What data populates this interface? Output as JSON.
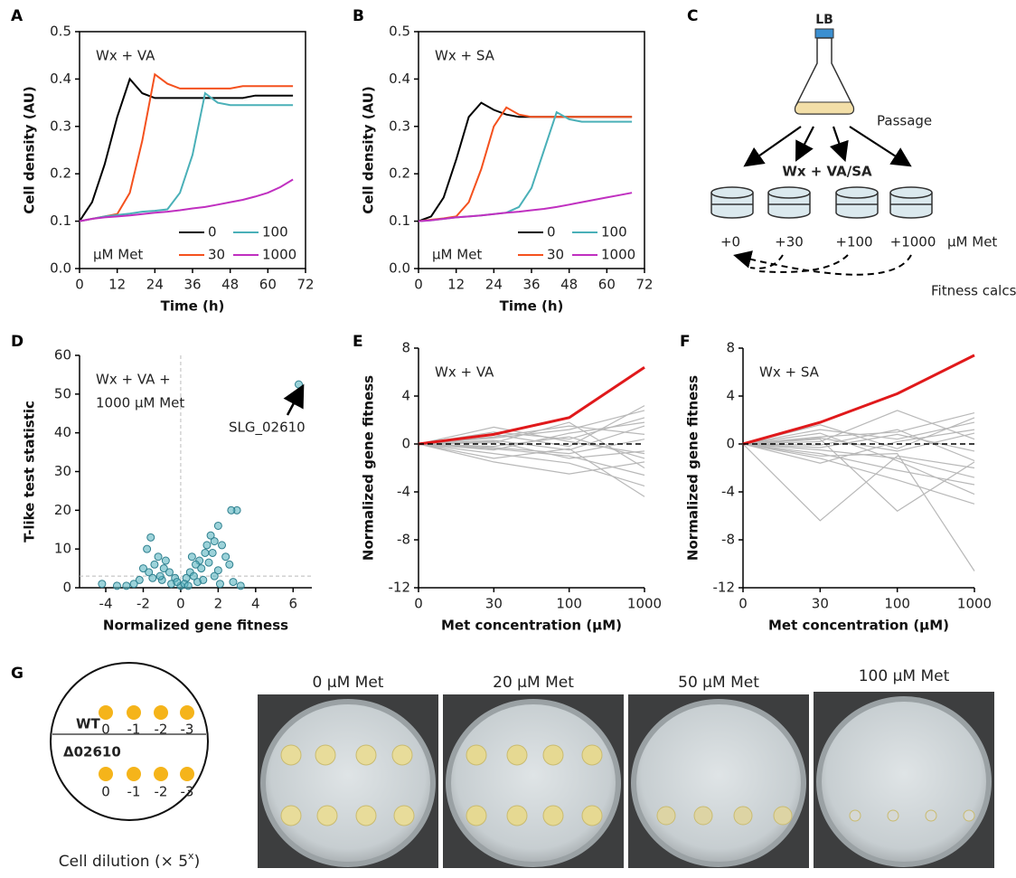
{
  "panel_labels": [
    "A",
    "B",
    "C",
    "D",
    "E",
    "F",
    "G"
  ],
  "chart_data": [
    {
      "type": "line",
      "box": true,
      "annotation": [
        "Wx + VA"
      ],
      "xlabel": "Time (h)",
      "ylabel": "Cell density (AU)",
      "x": [
        0,
        4,
        8,
        12,
        16,
        20,
        24,
        28,
        32,
        36,
        40,
        44,
        48,
        52,
        56,
        60,
        64,
        68
      ],
      "xlim": [
        0,
        72
      ],
      "xticks": [
        0,
        12,
        24,
        36,
        48,
        60,
        72
      ],
      "ylim": [
        0,
        0.5
      ],
      "yticks": [
        {
          "value": 0,
          "label": "0.0"
        },
        0.1,
        0.2,
        0.3,
        0.4,
        0.5
      ],
      "legend_title": "μM Met",
      "series": [
        {
          "name": "0",
          "color": "#000000",
          "values": [
            0.1,
            0.14,
            0.22,
            0.32,
            0.4,
            0.37,
            0.36,
            0.36,
            0.36,
            0.36,
            0.36,
            0.36,
            0.36,
            0.36,
            0.365,
            0.365,
            0.365,
            0.365
          ]
        },
        {
          "name": "30",
          "color": "#f4511e",
          "values": [
            0.1,
            0.105,
            0.11,
            0.115,
            0.16,
            0.27,
            0.41,
            0.39,
            0.38,
            0.38,
            0.38,
            0.38,
            0.38,
            0.385,
            0.385,
            0.385,
            0.385,
            0.385
          ]
        },
        {
          "name": "100",
          "color": "#4ab0b8",
          "values": [
            0.1,
            0.105,
            0.11,
            0.113,
            0.116,
            0.12,
            0.122,
            0.125,
            0.16,
            0.24,
            0.37,
            0.35,
            0.345,
            0.345,
            0.345,
            0.345,
            0.345,
            0.345
          ]
        },
        {
          "name": "1000",
          "color": "#c030c0",
          "values": [
            0.1,
            0.105,
            0.108,
            0.11,
            0.112,
            0.115,
            0.118,
            0.12,
            0.123,
            0.127,
            0.13,
            0.135,
            0.14,
            0.145,
            0.152,
            0.16,
            0.172,
            0.188
          ]
        }
      ]
    },
    {
      "type": "line",
      "box": true,
      "annotation": [
        "Wx + SA"
      ],
      "xlabel": "Time (h)",
      "ylabel": "Cell density (AU)",
      "x": [
        0,
        4,
        8,
        12,
        16,
        20,
        24,
        28,
        32,
        36,
        40,
        44,
        48,
        52,
        56,
        60,
        64,
        68
      ],
      "xlim": [
        0,
        72
      ],
      "xticks": [
        0,
        12,
        24,
        36,
        48,
        60,
        72
      ],
      "ylim": [
        0,
        0.5
      ],
      "yticks": [
        {
          "value": 0,
          "label": "0.0"
        },
        0.1,
        0.2,
        0.3,
        0.4,
        0.5
      ],
      "legend_title": "μM Met",
      "series": [
        {
          "name": "0",
          "color": "#000000",
          "values": [
            0.1,
            0.11,
            0.15,
            0.23,
            0.32,
            0.35,
            0.335,
            0.325,
            0.32,
            0.32,
            0.32,
            0.32,
            0.32,
            0.32,
            0.32,
            0.32,
            0.32,
            0.32
          ]
        },
        {
          "name": "30",
          "color": "#f4511e",
          "values": [
            0.1,
            0.103,
            0.106,
            0.11,
            0.14,
            0.21,
            0.3,
            0.34,
            0.325,
            0.32,
            0.32,
            0.32,
            0.32,
            0.32,
            0.32,
            0.32,
            0.32,
            0.32
          ]
        },
        {
          "name": "100",
          "color": "#4ab0b8",
          "values": [
            0.1,
            0.102,
            0.105,
            0.108,
            0.11,
            0.112,
            0.115,
            0.118,
            0.13,
            0.17,
            0.25,
            0.33,
            0.315,
            0.31,
            0.31,
            0.31,
            0.31,
            0.31
          ]
        },
        {
          "name": "1000",
          "color": "#c030c0",
          "values": [
            0.1,
            0.102,
            0.105,
            0.108,
            0.11,
            0.112,
            0.115,
            0.118,
            0.12,
            0.123,
            0.126,
            0.13,
            0.135,
            0.14,
            0.145,
            0.15,
            0.155,
            0.16
          ]
        }
      ]
    },
    {
      "type": "scatter",
      "annotation": [
        "Wx + VA +",
        "1000 μM Met"
      ],
      "callout": "SLG_02610",
      "xlabel": "Normalized gene fitness",
      "ylabel": "T-like test statistic",
      "color": "#5ab4c0",
      "xlim": [
        -5.4,
        7
      ],
      "xticks": [
        -4,
        -2,
        0,
        2,
        4,
        6
      ],
      "ylim": [
        0,
        60
      ],
      "yticks": [
        0,
        10,
        20,
        30,
        40,
        50,
        60
      ],
      "hline": 3,
      "vline": 0,
      "x": [
        6.3,
        3.0,
        2.7,
        2.0,
        1.6,
        1.8,
        -1.6,
        -1.8,
        1.3,
        2.2,
        1.0,
        0.8,
        -1.2,
        -1.4,
        -0.9,
        -0.6,
        -0.3,
        0.3,
        0.5,
        0.7,
        1.1,
        1.5,
        2.4,
        2.6,
        -2.2,
        -2.5,
        -4.2,
        -3.4,
        -2.9,
        -1.0,
        -0.5,
        0,
        0.2,
        0.4,
        0.9,
        1.2,
        1.8,
        2.1,
        2.8,
        -1.7,
        -1.5,
        -2.0,
        1.4,
        -0.8,
        -0.2,
        3.2,
        2.0,
        -1.1,
        0.6,
        1.7
      ],
      "values": [
        52.5,
        20,
        20,
        16,
        13.5,
        12,
        13,
        10,
        9,
        11,
        7,
        6,
        8,
        6,
        5,
        4,
        2.5,
        2.5,
        4,
        3,
        5,
        6.5,
        8,
        6,
        2,
        1,
        1,
        0.5,
        0.5,
        2,
        1,
        0.5,
        1,
        0.5,
        1.5,
        2,
        3,
        1,
        1.5,
        4,
        2.5,
        5,
        11,
        7,
        1.5,
        0.5,
        4.5,
        3,
        8,
        9
      ]
    },
    {
      "type": "line",
      "annotation": [
        "Wx + VA"
      ],
      "xlabel": "Met concentration (μM)",
      "ylabel": "Normalized gene fitness",
      "categories": [
        "0",
        "30",
        "100",
        "1000"
      ],
      "ylim": [
        -12,
        8
      ],
      "yticks": [
        -12,
        -8,
        -4,
        0,
        4,
        8
      ],
      "hline": 0,
      "series": [
        {
          "color": "#b8b8b8",
          "values": [
            0,
            0.5,
            1.2,
            2.8
          ]
        },
        {
          "color": "#b8b8b8",
          "values": [
            0,
            -0.4,
            -1.0,
            -2.6
          ]
        },
        {
          "color": "#b8b8b8",
          "values": [
            0,
            0.3,
            -0.5,
            1.5
          ]
        },
        {
          "color": "#b8b8b8",
          "values": [
            0,
            -0.8,
            -1.6,
            -3.5
          ]
        },
        {
          "color": "#b8b8b8",
          "values": [
            0,
            1.0,
            0.4,
            2.2
          ]
        },
        {
          "color": "#b8b8b8",
          "values": [
            0,
            -0.2,
            0.6,
            -1.2
          ]
        },
        {
          "color": "#b8b8b8",
          "values": [
            0,
            0.6,
            1.5,
            0.8
          ]
        },
        {
          "color": "#b8b8b8",
          "values": [
            0,
            -1.2,
            -0.4,
            -4.4
          ]
        },
        {
          "color": "#b8b8b8",
          "values": [
            0,
            0.2,
            -1.2,
            -0.6
          ]
        },
        {
          "color": "#b8b8b8",
          "values": [
            0,
            -0.5,
            0.9,
            1.8
          ]
        },
        {
          "color": "#b8b8b8",
          "values": [
            0,
            1.4,
            0.2,
            -0.8
          ]
        },
        {
          "color": "#b8b8b8",
          "values": [
            0,
            -1.5,
            -2.5,
            -1.5
          ]
        },
        {
          "color": "#b8b8b8",
          "values": [
            0,
            0.8,
            -0.2,
            3.2
          ]
        },
        {
          "color": "#b8b8b8",
          "values": [
            0,
            -0.3,
            -0.8,
            0.4
          ]
        },
        {
          "color": "#b8b8b8",
          "values": [
            0,
            0.1,
            1.8,
            -2.0
          ]
        },
        {
          "color": "#e0191b",
          "values": [
            0,
            0.8,
            2.2,
            6.4
          ]
        }
      ]
    },
    {
      "type": "line",
      "annotation": [
        "Wx + SA"
      ],
      "xlabel": "Met concentration (μM)",
      "ylabel": "Normalized gene fitness",
      "categories": [
        "0",
        "30",
        "100",
        "1000"
      ],
      "ylim": [
        -12,
        8
      ],
      "yticks": [
        -12,
        -8,
        -4,
        0,
        4,
        8
      ],
      "hline": 0,
      "series": [
        {
          "color": "#b8b8b8",
          "values": [
            0,
            0.6,
            1.0,
            2.6
          ]
        },
        {
          "color": "#b8b8b8",
          "values": [
            0,
            -0.5,
            -1.2,
            -2.8
          ]
        },
        {
          "color": "#b8b8b8",
          "values": [
            0,
            -6.4,
            -1.0,
            -2.0
          ]
        },
        {
          "color": "#b8b8b8",
          "values": [
            0,
            0.4,
            -5.6,
            -1.5
          ]
        },
        {
          "color": "#b8b8b8",
          "values": [
            0,
            -1.0,
            -0.8,
            -10.6
          ]
        },
        {
          "color": "#b8b8b8",
          "values": [
            0,
            1.2,
            0.4,
            1.8
          ]
        },
        {
          "color": "#b8b8b8",
          "values": [
            0,
            -0.3,
            0.8,
            -0.6
          ]
        },
        {
          "color": "#b8b8b8",
          "values": [
            0,
            0.9,
            -1.4,
            -4.2
          ]
        },
        {
          "color": "#b8b8b8",
          "values": [
            0,
            -1.6,
            0.2,
            1.2
          ]
        },
        {
          "color": "#b8b8b8",
          "values": [
            0,
            0.2,
            2.8,
            0.4
          ]
        },
        {
          "color": "#b8b8b8",
          "values": [
            0,
            -0.8,
            -2.2,
            -3.4
          ]
        },
        {
          "color": "#b8b8b8",
          "values": [
            0,
            1.6,
            -0.4,
            2.2
          ]
        },
        {
          "color": "#b8b8b8",
          "values": [
            0,
            -0.1,
            1.2,
            -1.4
          ]
        },
        {
          "color": "#b8b8b8",
          "values": [
            0,
            0.5,
            -0.6,
            0.9
          ]
        },
        {
          "color": "#b8b8b8",
          "values": [
            0,
            -1.2,
            -3.0,
            -5.0
          ]
        },
        {
          "color": "#e0191b",
          "values": [
            0,
            1.8,
            4.2,
            7.4
          ]
        }
      ]
    }
  ],
  "diagram": {
    "flask": "LB",
    "step": "Passage",
    "condition": "Wx + VA/SA",
    "doses": [
      "+0",
      "+30",
      "+100",
      "+1000"
    ],
    "unit": "μM Met",
    "note": "Fitness calcs."
  },
  "dilution_key": {
    "rows": [
      "WT",
      "Δ02610"
    ],
    "labels": [
      "0",
      "-1",
      "-2",
      "-3"
    ],
    "caption": "Cell dilution (× 5",
    "caption_sup": "x",
    "caption_end": ")"
  },
  "plates": {
    "titles": [
      "0 μM Met",
      "20 μM Met",
      "50 μM Met",
      "100 μM Met"
    ]
  }
}
